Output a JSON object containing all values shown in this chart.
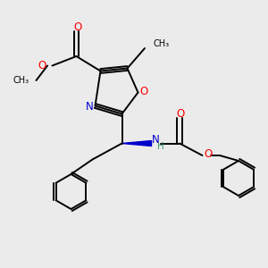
{
  "bg_color": "#ebebeb",
  "bond_color": "#000000",
  "n_color": "#0000cc",
  "o_color": "#ff0000",
  "h_color": "#3a9a6e",
  "line_width": 1.4,
  "fig_w": 3.0,
  "fig_h": 3.0,
  "dpi": 100,
  "xlim": [
    0,
    10
  ],
  "ylim": [
    0,
    10
  ]
}
